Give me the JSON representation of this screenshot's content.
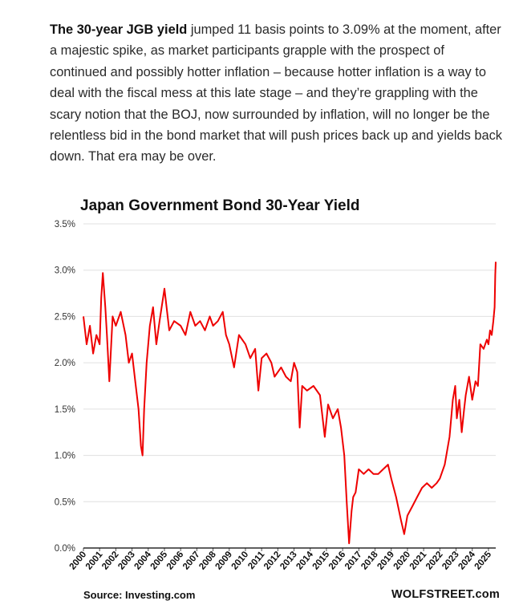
{
  "article": {
    "lead_bold": "The 30-year JGB yield",
    "text": " jumped 11 basis points to 3.09% at the moment, after a majestic spike, as market participants grapple with the prospect of continued and possibly hotter inflation – because hotter inflation is a way to deal with the fiscal mess at this late stage – and they’re grappling with the scary notion that the BOJ, now surrounded by inflation, will no longer be the relentless bid in the bond market that will push prices back up and yields back down. That era may be over."
  },
  "footer": {
    "source": "Source: Investing.com",
    "brand": "WOLFSTREET.com"
  },
  "colors": {
    "line": "#ee0000",
    "grid": "#e0e0e0",
    "axis": "#000000"
  },
  "chart_data": {
    "type": "line",
    "title": "Japan Government Bond 30-Year Yield",
    "xlabel": "",
    "ylabel": "",
    "ylim": [
      0,
      3.5
    ],
    "xlim": [
      2000.0,
      2025.45
    ],
    "y_ticks": [
      "0.0%",
      "0.5%",
      "1.0%",
      "1.5%",
      "2.0%",
      "2.5%",
      "3.0%",
      "3.5%"
    ],
    "x_ticks": [
      "2000",
      "2001",
      "2002",
      "2003",
      "2004",
      "2005",
      "2006",
      "2007",
      "2008",
      "2009",
      "2010",
      "2011",
      "2012",
      "2013",
      "2014",
      "2015",
      "2016",
      "2017",
      "2018",
      "2019",
      "2020",
      "2021",
      "2022",
      "2023",
      "2024",
      "2025"
    ],
    "grid": true,
    "legend": "none",
    "series": [
      {
        "x": [
          2000.0,
          2000.2,
          2000.4,
          2000.6,
          2000.8,
          2001.0,
          2001.1,
          2001.2,
          2001.35,
          2001.45,
          2001.6,
          2001.8,
          2002.0,
          2002.3,
          2002.6,
          2002.8,
          2003.0,
          2003.2,
          2003.4,
          2003.55,
          2003.65,
          2003.75,
          2003.9,
          2004.1,
          2004.3,
          2004.5,
          2004.7,
          2005.0,
          2005.3,
          2005.6,
          2006.0,
          2006.3,
          2006.6,
          2006.9,
          2007.2,
          2007.5,
          2007.8,
          2008.0,
          2008.3,
          2008.6,
          2008.8,
          2009.0,
          2009.3,
          2009.6,
          2010.0,
          2010.3,
          2010.6,
          2010.8,
          2011.0,
          2011.3,
          2011.6,
          2011.8,
          2012.2,
          2012.5,
          2012.8,
          2013.0,
          2013.2,
          2013.35,
          2013.5,
          2013.8,
          2014.2,
          2014.6,
          2014.9,
          2015.1,
          2015.4,
          2015.7,
          2015.9,
          2016.1,
          2016.25,
          2016.4,
          2016.55,
          2016.65,
          2016.8,
          2017.0,
          2017.3,
          2017.6,
          2017.9,
          2018.2,
          2018.5,
          2018.8,
          2019.0,
          2019.3,
          2019.6,
          2019.8,
          2020.0,
          2020.3,
          2020.6,
          2020.9,
          2021.2,
          2021.5,
          2021.8,
          2022.0,
          2022.3,
          2022.6,
          2022.8,
          2022.95,
          2023.05,
          2023.2,
          2023.35,
          2023.5,
          2023.6,
          2023.8,
          2024.0,
          2024.2,
          2024.35,
          2024.5,
          2024.7,
          2024.9,
          2025.0,
          2025.1,
          2025.2,
          2025.3,
          2025.38,
          2025.42,
          2025.45
        ],
        "y": [
          2.5,
          2.2,
          2.4,
          2.1,
          2.3,
          2.2,
          2.7,
          2.97,
          2.6,
          2.3,
          1.8,
          2.5,
          2.4,
          2.55,
          2.3,
          2.0,
          2.1,
          1.8,
          1.5,
          1.1,
          1.0,
          1.5,
          2.0,
          2.4,
          2.6,
          2.2,
          2.45,
          2.8,
          2.35,
          2.45,
          2.4,
          2.3,
          2.55,
          2.4,
          2.45,
          2.35,
          2.5,
          2.4,
          2.45,
          2.55,
          2.3,
          2.2,
          1.95,
          2.3,
          2.2,
          2.05,
          2.15,
          1.7,
          2.05,
          2.1,
          2.0,
          1.85,
          1.95,
          1.85,
          1.8,
          2.0,
          1.9,
          1.3,
          1.75,
          1.7,
          1.75,
          1.65,
          1.2,
          1.55,
          1.4,
          1.5,
          1.3,
          1.0,
          0.5,
          0.05,
          0.4,
          0.55,
          0.6,
          0.85,
          0.8,
          0.85,
          0.8,
          0.8,
          0.85,
          0.9,
          0.75,
          0.55,
          0.3,
          0.15,
          0.35,
          0.45,
          0.55,
          0.65,
          0.7,
          0.65,
          0.7,
          0.75,
          0.9,
          1.2,
          1.6,
          1.75,
          1.4,
          1.6,
          1.25,
          1.5,
          1.65,
          1.85,
          1.6,
          1.8,
          1.75,
          2.2,
          2.15,
          2.25,
          2.2,
          2.35,
          2.3,
          2.45,
          2.6,
          2.95,
          3.09
        ]
      }
    ]
  }
}
